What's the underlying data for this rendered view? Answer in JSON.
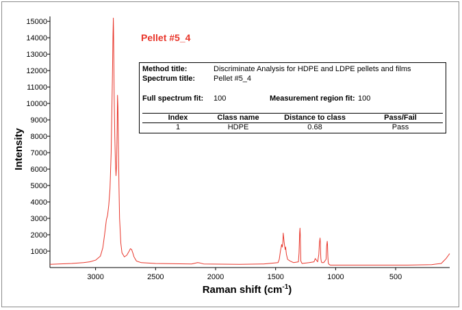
{
  "chart_data": {
    "type": "line",
    "title": "Pellet #5_4",
    "xlabel": "Raman shift (cm",
    "xlabel_sup": "-1",
    "xlabel_close": ")",
    "ylabel": "Intensity",
    "xlim": [
      3380,
      50
    ],
    "ylim": [
      0,
      15300
    ],
    "x_ticks": [
      3000,
      2500,
      2000,
      1500,
      1000,
      500
    ],
    "y_ticks": [
      1000,
      2000,
      3000,
      4000,
      5000,
      6000,
      7000,
      8000,
      9000,
      10000,
      11000,
      12000,
      13000,
      14000,
      15000
    ],
    "series": [
      {
        "color": "#e8352a",
        "x": [
          3380,
          3200,
          3100,
          3050,
          3000,
          2960,
          2940,
          2925,
          2910,
          2900,
          2890,
          2880,
          2870,
          2860,
          2855,
          2852,
          2850,
          2848,
          2845,
          2840,
          2835,
          2830,
          2825,
          2820,
          2817,
          2814,
          2810,
          2805,
          2800,
          2790,
          2780,
          2760,
          2740,
          2720,
          2710,
          2700,
          2690,
          2680,
          2660,
          2620,
          2500,
          2200,
          2150,
          2130,
          2100,
          1800,
          1600,
          1480,
          1470,
          1460,
          1450,
          1445,
          1440,
          1437,
          1434,
          1430,
          1425,
          1420,
          1417,
          1414,
          1410,
          1400,
          1380,
          1350,
          1310,
          1305,
          1300,
          1297,
          1295,
          1292,
          1290,
          1280,
          1220,
          1180,
          1170,
          1160,
          1150,
          1140,
          1135,
          1130,
          1127,
          1125,
          1123,
          1120,
          1115,
          1100,
          1080,
          1075,
          1070,
          1068,
          1065,
          1062,
          1060,
          1055,
          1045,
          1000,
          900,
          890,
          880,
          870,
          850,
          800,
          600,
          400,
          200,
          120,
          100,
          80,
          60,
          50
        ],
        "y": [
          200,
          250,
          300,
          350,
          450,
          700,
          1200,
          2000,
          2900,
          3200,
          3800,
          4800,
          7000,
          11500,
          14200,
          15200,
          14500,
          12800,
          10500,
          8000,
          6500,
          5600,
          6200,
          8500,
          10500,
          9800,
          7500,
          5000,
          3000,
          1500,
          900,
          650,
          750,
          1000,
          1150,
          1100,
          900,
          650,
          400,
          300,
          250,
          220,
          300,
          280,
          220,
          200,
          220,
          300,
          500,
          1000,
          1400,
          1250,
          1500,
          2100,
          1900,
          1600,
          1300,
          1100,
          1250,
          1050,
          800,
          500,
          400,
          300,
          350,
          900,
          2100,
          2400,
          2000,
          1000,
          400,
          250,
          300,
          350,
          550,
          450,
          350,
          800,
          1500,
          1800,
          1500,
          800,
          550,
          400,
          300,
          300,
          500,
          1300,
          1600,
          1400,
          700,
          350,
          250,
          200,
          150,
          150,
          150,
          150,
          150,
          150,
          150,
          150,
          150,
          150,
          180,
          250,
          400,
          550,
          750,
          850
        ]
      }
    ],
    "table": {
      "method_label": "Method title:",
      "method_value": "Discriminate Analysis for HDPE and LDPE pellets and films",
      "spectrum_label": "Spectrum title:",
      "spectrum_value": "Pellet #5_4",
      "full_fit_label": "Full spectrum fit:",
      "full_fit_value": "100",
      "region_fit_label": "Measurement region fit:",
      "region_fit_value": "100",
      "columns": [
        "Index",
        "Class name",
        "Distance to class",
        "Pass/Fail"
      ],
      "rows": [
        [
          "1",
          "HDPE",
          "0.68",
          "Pass"
        ]
      ]
    }
  }
}
